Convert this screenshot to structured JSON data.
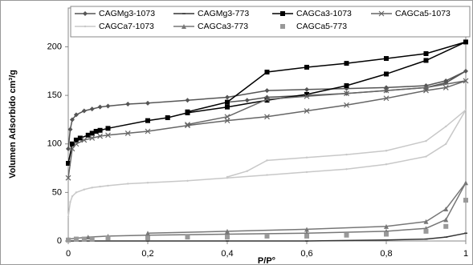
{
  "chart_data": {
    "type": "line",
    "x_label": "P/P°",
    "y_label": "Volumen Adsorbido cm³/g",
    "xlim": [
      0,
      1
    ],
    "ylim": [
      0,
      240
    ],
    "xticks": [
      0,
      {
        "value": 0.2,
        "label": "0,2"
      },
      {
        "value": 0.4,
        "label": "0,4"
      },
      {
        "value": 0.6,
        "label": "0,6"
      },
      {
        "value": 0.8,
        "label": "0,8"
      },
      1
    ],
    "yticks": [
      0,
      50,
      100,
      150,
      200
    ],
    "series": [
      {
        "name": "CAGMg3-1073",
        "color": "#555555",
        "marker": "diamond",
        "line": true,
        "x": [
          0,
          0.005,
          0.01,
          0.02,
          0.04,
          0.06,
          0.08,
          0.1,
          0.15,
          0.2,
          0.3,
          0.4,
          0.5,
          0.6,
          0.7,
          0.8,
          0.9,
          0.95,
          1,
          0.95,
          0.9,
          0.8,
          0.7,
          0.6,
          0.5,
          0.45,
          0.4
        ],
        "values": [
          95,
          115,
          125,
          130,
          134,
          136,
          138,
          139,
          141,
          142,
          145,
          148,
          155,
          156,
          157,
          158,
          160,
          165,
          175,
          163,
          158,
          155,
          152,
          150,
          148,
          145,
          143
        ]
      },
      {
        "name": "CAGMg3-773",
        "color": "#333333",
        "marker": "dash",
        "line": true,
        "x": [
          0,
          0.2,
          0.4,
          0.6,
          0.8,
          0.9,
          0.95,
          1
        ],
        "values": [
          0,
          0,
          0,
          0,
          1,
          2,
          4,
          8
        ]
      },
      {
        "name": "CAGCa3-1073",
        "color": "#000000",
        "marker": "square",
        "line": true,
        "x": [
          0,
          0.01,
          0.02,
          0.03,
          0.05,
          0.06,
          0.07,
          0.08,
          0.1,
          0.2,
          0.25,
          0.3,
          0.4,
          0.5,
          0.6,
          0.7,
          0.8,
          0.9,
          1,
          0.9,
          0.8,
          0.7,
          0.6,
          0.5,
          0.4,
          0.3
        ],
        "values": [
          80,
          100,
          104,
          106,
          109,
          111,
          113,
          114,
          116,
          124,
          127,
          132,
          138,
          145,
          151,
          160,
          172,
          186,
          205,
          193,
          188,
          183,
          179,
          174,
          143,
          133
        ]
      },
      {
        "name": "CAGCa5-1073",
        "color": "#666666",
        "marker": "x",
        "line": true,
        "x": [
          0,
          0.01,
          0.02,
          0.04,
          0.06,
          0.08,
          0.1,
          0.15,
          0.2,
          0.3,
          0.4,
          0.5,
          0.6,
          0.7,
          0.8,
          0.9,
          0.95,
          1,
          0.9,
          0.8,
          0.7,
          0.6,
          0.5,
          0.4,
          0.3
        ],
        "values": [
          65,
          95,
          100,
          104,
          106,
          108,
          109,
          111,
          113,
          119,
          124,
          128,
          134,
          140,
          147,
          155,
          158,
          165,
          158,
          155,
          152,
          149,
          146,
          128,
          120
        ]
      },
      {
        "name": "CAGCa7-1073",
        "color": "#c8c8c8",
        "marker": "none",
        "line": true,
        "x": [
          0,
          0.005,
          0.01,
          0.02,
          0.04,
          0.06,
          0.08,
          0.1,
          0.15,
          0.2,
          0.3,
          0.4,
          0.5,
          0.6,
          0.7,
          0.8,
          0.9,
          0.95,
          1,
          0.95,
          0.9,
          0.8,
          0.7,
          0.6,
          0.5,
          0.45,
          0.4
        ],
        "values": [
          25,
          40,
          46,
          50,
          53,
          55,
          56,
          57,
          59,
          60,
          62,
          65,
          68,
          71,
          74,
          79,
          87,
          100,
          135,
          118,
          103,
          93,
          89,
          86,
          83,
          72,
          66
        ]
      },
      {
        "name": "CAGCa3-773",
        "color": "#777777",
        "marker": "triangle",
        "line": true,
        "x": [
          0,
          0.05,
          0.1,
          0.2,
          0.4,
          0.6,
          0.8,
          0.9,
          0.95,
          1,
          0.95,
          0.9,
          0.8,
          0.6,
          0.4,
          0.2
        ],
        "values": [
          2,
          4,
          5,
          6,
          7,
          8,
          10,
          13,
          22,
          60,
          33,
          20,
          15,
          12,
          10,
          8
        ]
      },
      {
        "name": "CAGCa5-773",
        "color": "#999999",
        "marker": "square",
        "line": false,
        "x": [
          0,
          0.02,
          0.04,
          0.06,
          0.1,
          0.2,
          0.3,
          0.4,
          0.5,
          0.6,
          0.7,
          0.8,
          0.9,
          0.95,
          1
        ],
        "values": [
          1,
          2,
          2,
          2,
          3,
          3,
          4,
          4,
          5,
          5,
          6,
          7,
          10,
          15,
          42
        ]
      }
    ]
  }
}
